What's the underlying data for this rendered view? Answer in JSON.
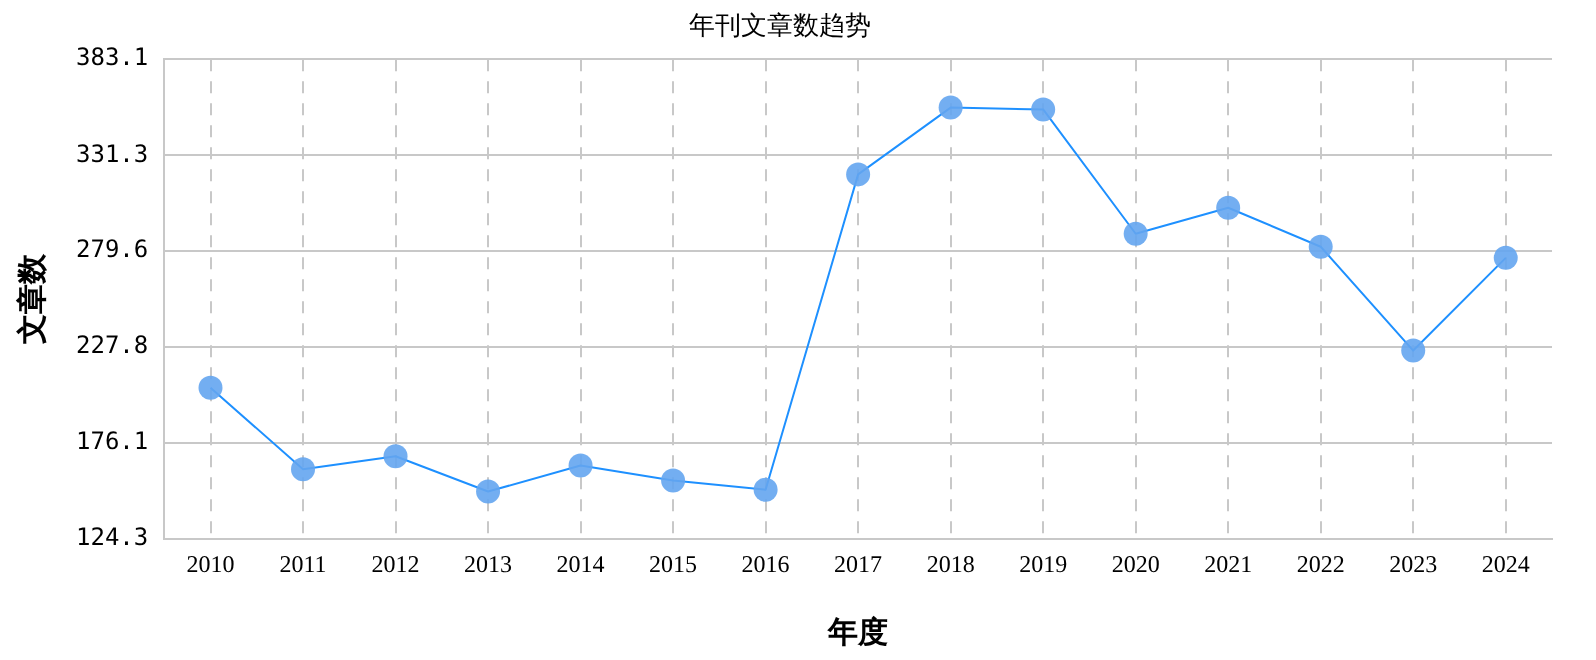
{
  "chart_data": {
    "type": "line",
    "title": "年刊文章数趋势",
    "xlabel": "年度",
    "ylabel": "文章数",
    "categories": [
      "2010",
      "2011",
      "2012",
      "2013",
      "2014",
      "2015",
      "2016",
      "2017",
      "2018",
      "2019",
      "2020",
      "2021",
      "2022",
      "2023",
      "2024"
    ],
    "series": [
      {
        "color": "#1e90ff",
        "values": [
          206,
          162,
          169,
          150,
          164,
          156,
          151,
          321,
          357,
          356,
          289,
          303,
          282,
          226,
          276
        ]
      }
    ],
    "ylim": [
      124.3,
      383.1
    ],
    "yticks": [
      124.3,
      176.1,
      227.8,
      279.6,
      331.3,
      383.1
    ],
    "grid": true,
    "legend": false,
    "marker": "circle",
    "line_style": "solid"
  }
}
